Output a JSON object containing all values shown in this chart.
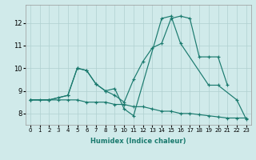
{
  "background_color": "#d0eaea",
  "grid_color": "#b0d0d0",
  "line_color": "#1a7a6e",
  "xlabel": "Humidex (Indice chaleur)",
  "xlim": [
    -0.5,
    23.5
  ],
  "ylim": [
    7.5,
    12.8
  ],
  "yticks": [
    8,
    9,
    10,
    11,
    12
  ],
  "xticks": [
    0,
    1,
    2,
    3,
    4,
    5,
    6,
    7,
    8,
    9,
    10,
    11,
    12,
    13,
    14,
    15,
    16,
    17,
    18,
    19,
    20,
    21,
    22,
    23
  ],
  "series": [
    {
      "x": [
        0,
        1,
        2,
        3,
        4,
        5,
        6,
        7,
        8,
        9,
        10,
        11,
        12,
        13,
        14,
        15,
        16,
        17,
        18,
        19,
        20,
        21,
        22,
        23
      ],
      "y": [
        8.6,
        8.6,
        8.6,
        8.6,
        8.6,
        8.6,
        8.5,
        8.5,
        8.5,
        8.4,
        8.4,
        8.3,
        8.3,
        8.2,
        8.1,
        8.1,
        8.0,
        8.0,
        7.95,
        7.9,
        7.85,
        7.8,
        7.8,
        7.8
      ]
    },
    {
      "x": [
        0,
        2,
        3,
        4,
        5,
        6,
        7,
        8,
        9,
        10,
        11,
        12,
        13,
        14,
        15,
        16,
        17,
        18,
        19,
        20,
        21
      ],
      "y": [
        8.6,
        8.6,
        8.7,
        8.8,
        10.0,
        9.9,
        9.3,
        9.0,
        8.8,
        8.5,
        9.5,
        10.3,
        10.9,
        11.1,
        12.2,
        12.3,
        12.2,
        10.5,
        10.5,
        10.5,
        9.25
      ]
    },
    {
      "x": [
        0,
        2,
        4,
        5,
        6,
        7,
        8,
        9,
        10,
        11,
        14,
        15,
        16,
        19,
        20,
        22,
        23
      ],
      "y": [
        8.6,
        8.6,
        8.8,
        10.0,
        9.9,
        9.3,
        9.0,
        9.1,
        8.2,
        7.9,
        12.2,
        12.3,
        11.1,
        9.25,
        9.25,
        8.6,
        7.75
      ]
    }
  ]
}
